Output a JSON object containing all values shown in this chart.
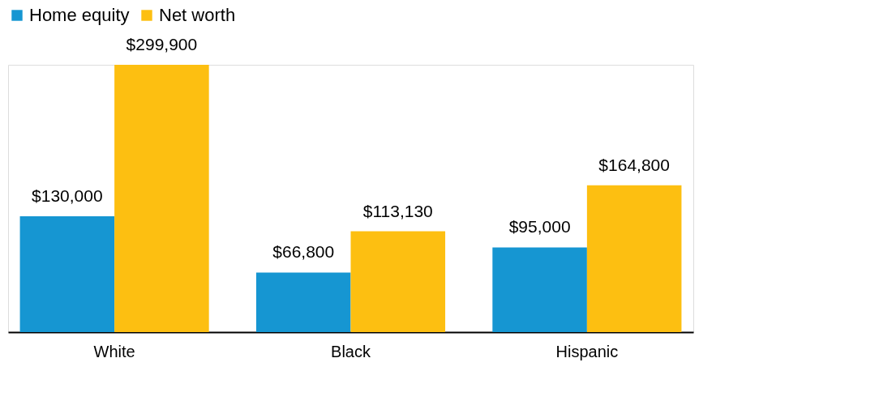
{
  "chart_data": {
    "type": "bar",
    "categories": [
      "White",
      "Black",
      "Hispanic"
    ],
    "series": [
      {
        "name": "Home equity",
        "color": "#1696d2",
        "values": [
          130000,
          66800,
          95000
        ],
        "value_labels": [
          "$130,000",
          "$66,800",
          "$95,000"
        ]
      },
      {
        "name": "Net worth",
        "color": "#fdbf11",
        "values": [
          299900,
          113130,
          164800
        ],
        "value_labels": [
          "$299,900",
          "$113,130",
          "$164,800"
        ]
      }
    ],
    "legend": "top left",
    "grid": false
  }
}
